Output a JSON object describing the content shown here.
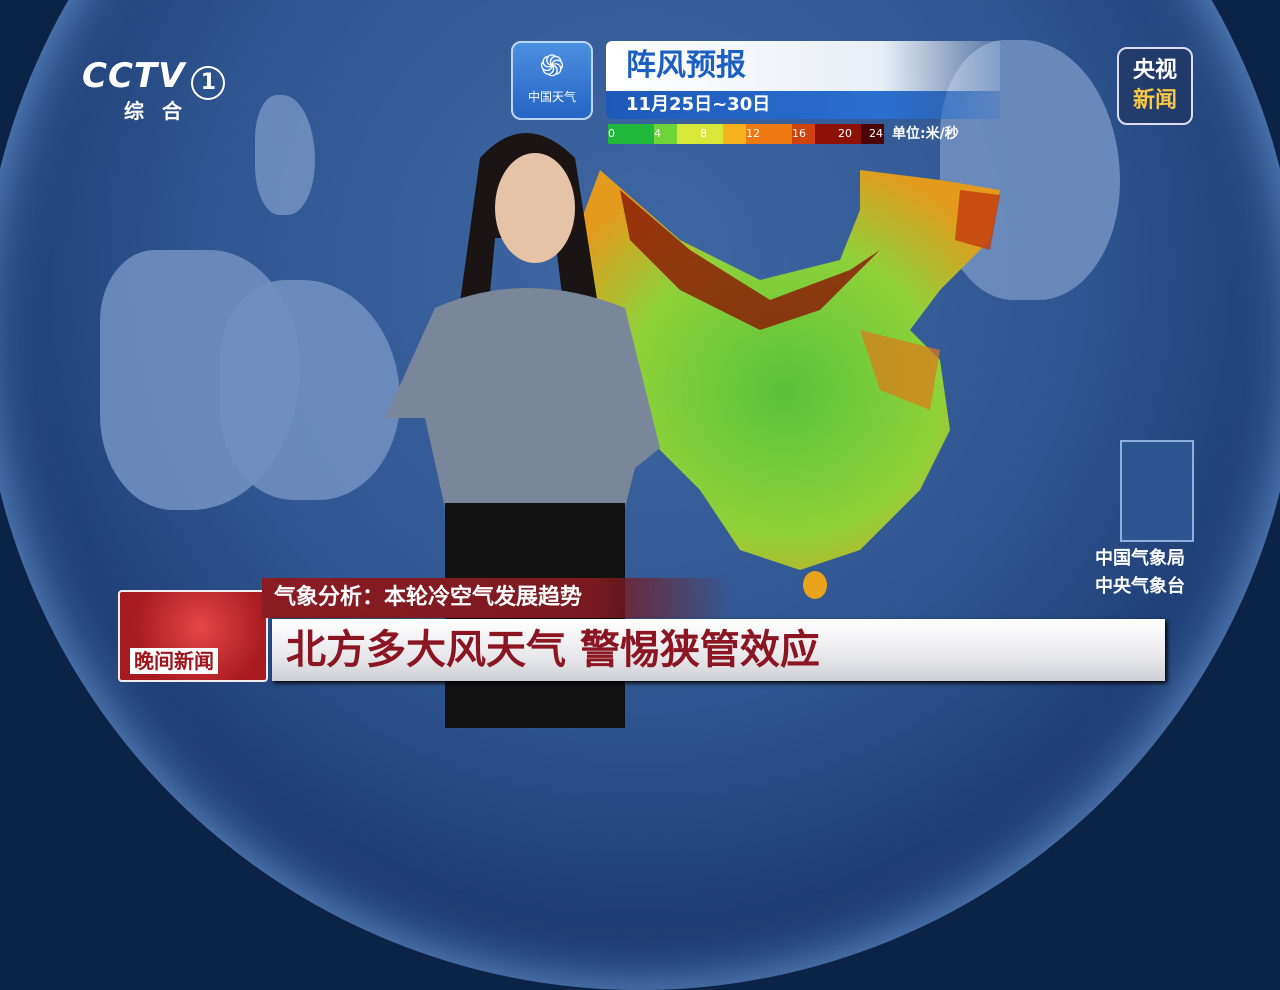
{
  "channel": {
    "logo": "CCTV",
    "number": "1",
    "name": "综合"
  },
  "corner_logo": {
    "line1": "央视",
    "line2": "新闻"
  },
  "weather_brand": {
    "icon": "swirl-icon",
    "name": "中国天气"
  },
  "forecast": {
    "title": "阵风预报",
    "date_range": "11月25日~30日"
  },
  "legend": {
    "ticks": [
      "0",
      "4",
      "8",
      "12",
      "16",
      "20",
      "24"
    ],
    "unit": "单位:米/秒",
    "colors": [
      "#1fb83a",
      "#6fd33a",
      "#d8e83a",
      "#f7b21c",
      "#ef7a12",
      "#d0420e",
      "#8c1207",
      "#4b0404"
    ]
  },
  "source": {
    "line1": "中国气象局",
    "line2": "中央气象台"
  },
  "lower_third": {
    "program": "晚间新闻",
    "topic": "气象分析：本轮冷空气发展趋势",
    "headline": "北方多大风天气 警惕狭管效应"
  }
}
